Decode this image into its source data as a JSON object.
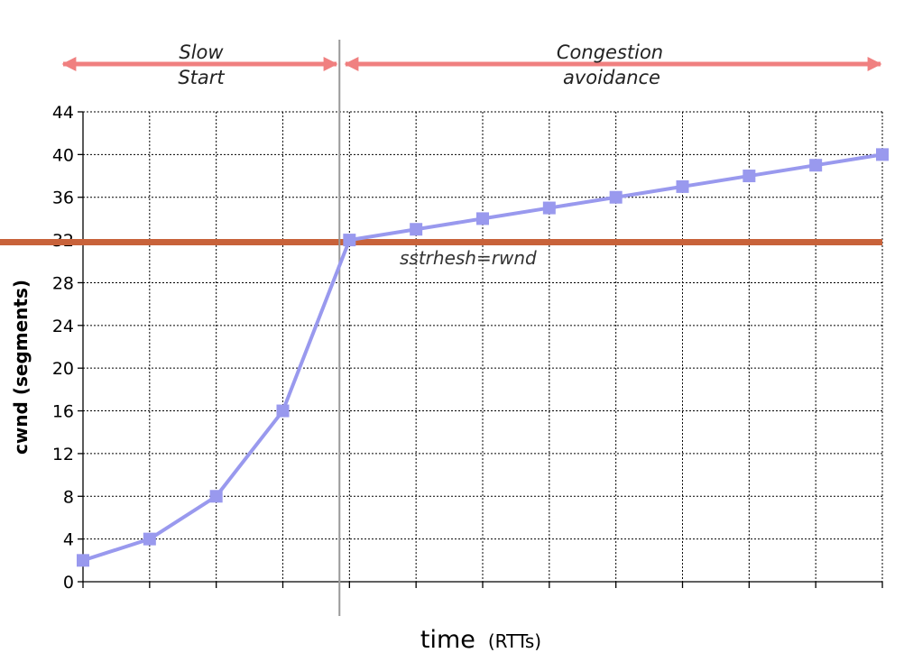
{
  "chart_data": {
    "type": "line",
    "xlabel": "time",
    "xlabel_unit": "(RTTs)",
    "ylabel": "cwnd (segments)",
    "ylim": [
      0,
      44
    ],
    "yticks": [
      0,
      4,
      8,
      12,
      16,
      20,
      24,
      28,
      32,
      36,
      40,
      44
    ],
    "x": [
      1,
      2,
      3,
      4,
      5,
      6,
      7,
      8,
      9,
      10,
      11,
      12,
      13
    ],
    "xlim": [
      1,
      13
    ],
    "grid": true,
    "series": [
      {
        "values": [
          2,
          4,
          8,
          16,
          32,
          33,
          34,
          35,
          36,
          37,
          38,
          39,
          40
        ],
        "color": "#9999ee",
        "marker": "square"
      }
    ],
    "threshold": {
      "value": 31.8,
      "label": "sstrhesh=rwnd",
      "color": "#c8623a"
    },
    "phase_divider_x": 4.85,
    "phases": [
      {
        "line1": "Slow",
        "line2": "Start"
      },
      {
        "line1": "Congestion",
        "line2": "avoidance"
      }
    ],
    "arrow_color": "#f08080"
  }
}
